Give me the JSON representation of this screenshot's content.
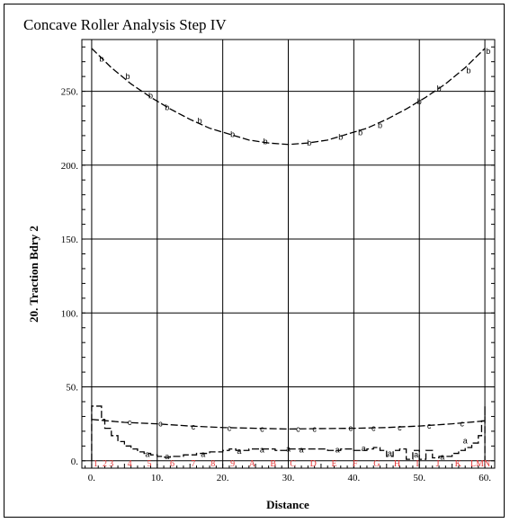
{
  "chart_data": {
    "type": "line",
    "title": "Concave Roller Analysis Step IV",
    "xlabel": "Distance",
    "ylabel": "20. Traction Bdry 2",
    "xlim": [
      -1.5,
      61.5
    ],
    "ylim": [
      -5,
      285
    ],
    "xticks": [
      0,
      10,
      20,
      30,
      40,
      50,
      60
    ],
    "xtick_labels": [
      "0.",
      "10.",
      "20.",
      "30.",
      "40.",
      "50.",
      "60."
    ],
    "yticks": [
      0,
      50,
      100,
      150,
      200,
      250
    ],
    "ytick_labels": [
      "0.",
      "50.",
      "100.",
      "150.",
      "200.",
      "250."
    ],
    "grid": true,
    "node_labels": [
      "1",
      "2",
      "3",
      "4",
      "5",
      "6",
      "7",
      "8",
      "9",
      "A",
      "B",
      "C",
      "D",
      "E",
      "F",
      "G",
      "H",
      "I",
      "J",
      "K",
      "LMN"
    ],
    "node_positions": [
      0.6,
      2.0,
      3.0,
      5.8,
      8.8,
      12.3,
      15.5,
      18.5,
      21.5,
      24.5,
      27.7,
      30.7,
      33.8,
      37.0,
      40.2,
      43.5,
      46.6,
      49.7,
      52.8,
      55.9,
      59.3
    ],
    "node_label_color": "#e83a3a",
    "series": [
      {
        "name": "b",
        "style": "dashed",
        "x": [
          0,
          3,
          6,
          9,
          12,
          15,
          18,
          21,
          24,
          27,
          30,
          33,
          36,
          39,
          42,
          45,
          48,
          51,
          54,
          57,
          60
        ],
        "y": [
          279,
          266,
          255,
          246,
          238,
          231,
          225,
          221,
          217,
          215,
          214,
          215,
          217,
          221,
          225,
          231,
          238,
          246,
          255,
          266,
          279
        ],
        "marker_x": [
          1.5,
          5.5,
          9,
          11.5,
          16.5,
          21.5,
          26.5,
          33.2,
          38,
          41,
          44,
          50,
          53,
          57.5,
          60.5
        ],
        "marker_y": [
          272,
          260,
          247,
          239,
          230,
          221,
          216,
          215,
          219,
          222,
          227,
          243,
          252,
          264,
          277
        ]
      },
      {
        "name": "c",
        "style": "dashed",
        "x": [
          0,
          5,
          10,
          15,
          20,
          25,
          30,
          35,
          40,
          45,
          50,
          55,
          60
        ],
        "y": [
          28,
          26,
          25,
          23.5,
          22.5,
          22,
          21.5,
          21.8,
          22,
          22.5,
          23.5,
          25,
          27
        ],
        "marker_x": [
          5.8,
          10.5,
          15.5,
          21,
          26,
          31.5,
          34,
          39.5,
          43,
          47,
          51.5,
          56.5
        ],
        "marker_y": [
          26,
          25,
          23,
          22,
          21.5,
          21.5,
          21.5,
          22,
          22,
          22.5,
          23.5,
          25
        ]
      },
      {
        "name": "a",
        "style": "step-dashed",
        "x": [
          0,
          0,
          1,
          1.5,
          2,
          3,
          4,
          5,
          6,
          7,
          8,
          9,
          10,
          11,
          12,
          14,
          16,
          18,
          20,
          21,
          22,
          24,
          26,
          28,
          30,
          32,
          34,
          36,
          38,
          40,
          42,
          43,
          44,
          45,
          46,
          47,
          48,
          49,
          50,
          51,
          52,
          53,
          54,
          55,
          56,
          57,
          58,
          59,
          59.5,
          60,
          60
        ],
        "y": [
          0,
          37,
          37,
          28,
          22,
          17,
          13,
          10,
          8,
          6,
          5,
          4,
          3,
          2.5,
          3,
          4,
          5,
          6,
          7,
          8,
          7,
          8,
          8,
          7,
          8,
          8,
          8,
          7,
          8,
          7,
          8,
          9,
          7,
          3,
          7,
          8,
          1,
          7,
          1,
          7,
          2,
          3,
          3,
          5,
          7,
          9,
          12,
          17,
          27,
          37,
          0
        ],
        "marker_x": [
          8.5,
          11.5,
          17,
          22.5,
          26,
          30,
          32,
          37.5,
          41.5,
          45.5,
          49.5,
          53.5,
          57
        ],
        "marker_y": [
          4.5,
          3,
          4.5,
          6.5,
          7.5,
          8,
          7.5,
          7.5,
          8.5,
          5,
          4,
          2.5,
          13.5
        ]
      }
    ]
  }
}
